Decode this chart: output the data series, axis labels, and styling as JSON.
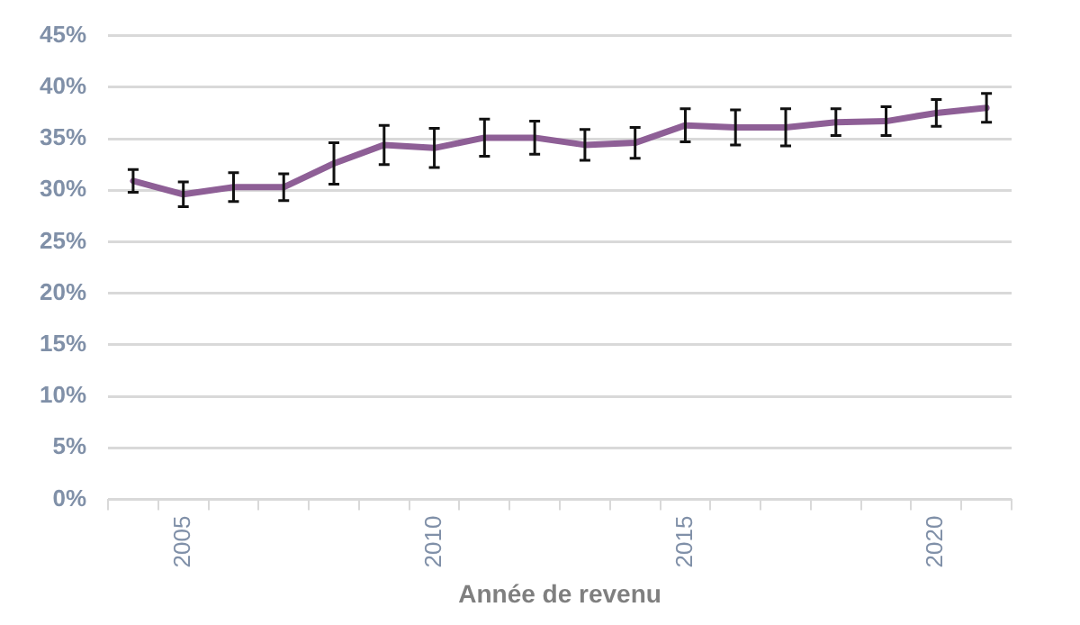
{
  "chart_data": {
    "type": "line",
    "xlabel": "Année de revenu",
    "categories": [
      null,
      "2005",
      null,
      null,
      null,
      null,
      "2010",
      null,
      null,
      null,
      null,
      "2015",
      null,
      null,
      null,
      null,
      "2020",
      null
    ],
    "series": [
      {
        "color": "#8e5f96",
        "values": [
          30.9,
          29.6,
          30.3,
          30.3,
          32.6,
          34.4,
          34.1,
          35.1,
          35.1,
          34.4,
          34.6,
          36.3,
          36.1,
          36.1,
          36.6,
          36.7,
          37.5,
          38.0
        ],
        "errors": [
          1.1,
          1.2,
          1.4,
          1.3,
          2.0,
          1.9,
          1.9,
          1.8,
          1.6,
          1.5,
          1.5,
          1.6,
          1.7,
          1.8,
          1.3,
          1.4,
          1.3,
          1.4
        ]
      }
    ],
    "ylim": [
      0,
      45
    ],
    "yticks": [
      {
        "value": 0,
        "label": "0%"
      },
      {
        "value": 5,
        "label": "5%"
      },
      {
        "value": 10,
        "label": "10%"
      },
      {
        "value": 15,
        "label": "15%"
      },
      {
        "value": 20,
        "label": "20%"
      },
      {
        "value": 25,
        "label": "25%"
      },
      {
        "value": 30,
        "label": "30%"
      },
      {
        "value": 35,
        "label": "35%"
      },
      {
        "value": 40,
        "label": "40%"
      },
      {
        "value": 45,
        "label": "45%"
      }
    ],
    "grid": "y",
    "legend": false,
    "marker": "none",
    "line_style": "solid"
  }
}
